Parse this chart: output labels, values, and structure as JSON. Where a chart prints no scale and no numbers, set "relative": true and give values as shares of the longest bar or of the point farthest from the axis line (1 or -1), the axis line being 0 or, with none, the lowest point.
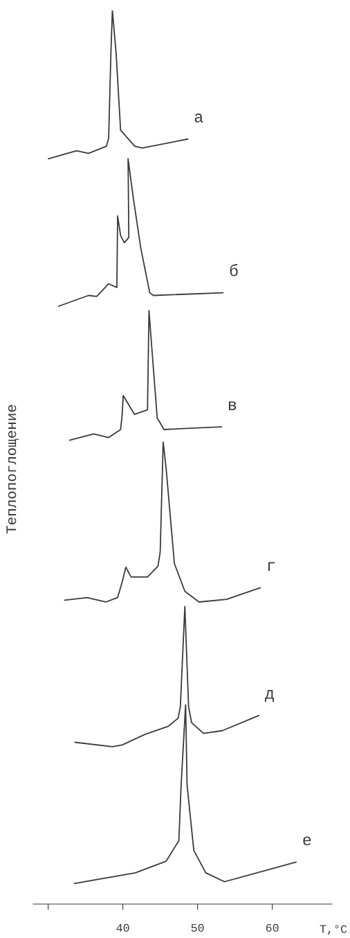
{
  "chart_data": {
    "type": "line",
    "relative": true,
    "ylabel": "Теплопоглощение",
    "xlabel": "T,°C",
    "xlim": [
      28,
      68
    ],
    "xticks": [
      {
        "value": 30,
        "label": null
      },
      40,
      50,
      60
    ],
    "tick_labels": "x",
    "grid": false,
    "legend": false,
    "marker": "none",
    "line_style": "solid",
    "series": [
      {
        "name": "а",
        "color": "#3a3a3a",
        "x": [
          30.05,
          33.8,
          35.4,
          37.8,
          38.1,
          38.4,
          38.6,
          39.1,
          39.7,
          41.6,
          42.6,
          48.7
        ],
        "values": [
          0.834,
          0.843,
          0.84,
          0.848,
          0.857,
          0.952,
          1.0,
          0.952,
          0.866,
          0.848,
          0.846,
          0.856
        ]
      },
      {
        "name": "б",
        "color": "#3a3a3a",
        "x": [
          31.4,
          35.4,
          36.5,
          38.1,
          39.2,
          39.3,
          39.7,
          40.2,
          40.8,
          40.7,
          41.4,
          42.4,
          43.6,
          44.1,
          53.4
        ],
        "values": [
          0.669,
          0.681,
          0.68,
          0.694,
          0.69,
          0.77,
          0.748,
          0.74,
          0.746,
          0.834,
          0.79,
          0.734,
          0.684,
          0.681,
          0.684
        ]
      },
      {
        "name": "в",
        "color": "#3a3a3a",
        "x": [
          32.9,
          36.1,
          38.1,
          39.7,
          39.9,
          40.05,
          41.55,
          43.3,
          43.5,
          43.9,
          44.6,
          45.5,
          53.2
        ],
        "values": [
          0.519,
          0.526,
          0.522,
          0.531,
          0.547,
          0.569,
          0.548,
          0.553,
          0.664,
          0.62,
          0.544,
          0.531,
          0.534
        ]
      },
      {
        "name": "г",
        "color": "#3a3a3a",
        "x": [
          32.2,
          35.2,
          37.7,
          39.3,
          39.9,
          40.4,
          41.1,
          43.3,
          44.7,
          45.0,
          45.4,
          45.8,
          46.9,
          48.3,
          50.2,
          53.9,
          58.4
        ],
        "values": [
          0.34,
          0.343,
          0.338,
          0.343,
          0.36,
          0.377,
          0.366,
          0.366,
          0.378,
          0.394,
          0.517,
          0.487,
          0.381,
          0.35,
          0.338,
          0.341,
          0.354
        ]
      },
      {
        "name": "д",
        "color": "#3a3a3a",
        "x": [
          33.6,
          38.6,
          39.9,
          43.0,
          46.1,
          47.4,
          47.7,
          48.3,
          48.8,
          49.2,
          50.8,
          53.3,
          58.2
        ],
        "values": [
          0.181,
          0.176,
          0.178,
          0.19,
          0.199,
          0.208,
          0.221,
          0.333,
          0.221,
          0.203,
          0.191,
          0.194,
          0.211
        ]
      },
      {
        "name": "е",
        "color": "#3a3a3a",
        "x": [
          33.5,
          41.7,
          45.8,
          47.5,
          47.8,
          48.4,
          48.6,
          49.5,
          51.1,
          53.6,
          63.2
        ],
        "values": [
          0.023,
          0.035,
          0.048,
          0.071,
          0.133,
          0.223,
          0.133,
          0.06,
          0.035,
          0.025,
          0.047
        ]
      }
    ]
  }
}
